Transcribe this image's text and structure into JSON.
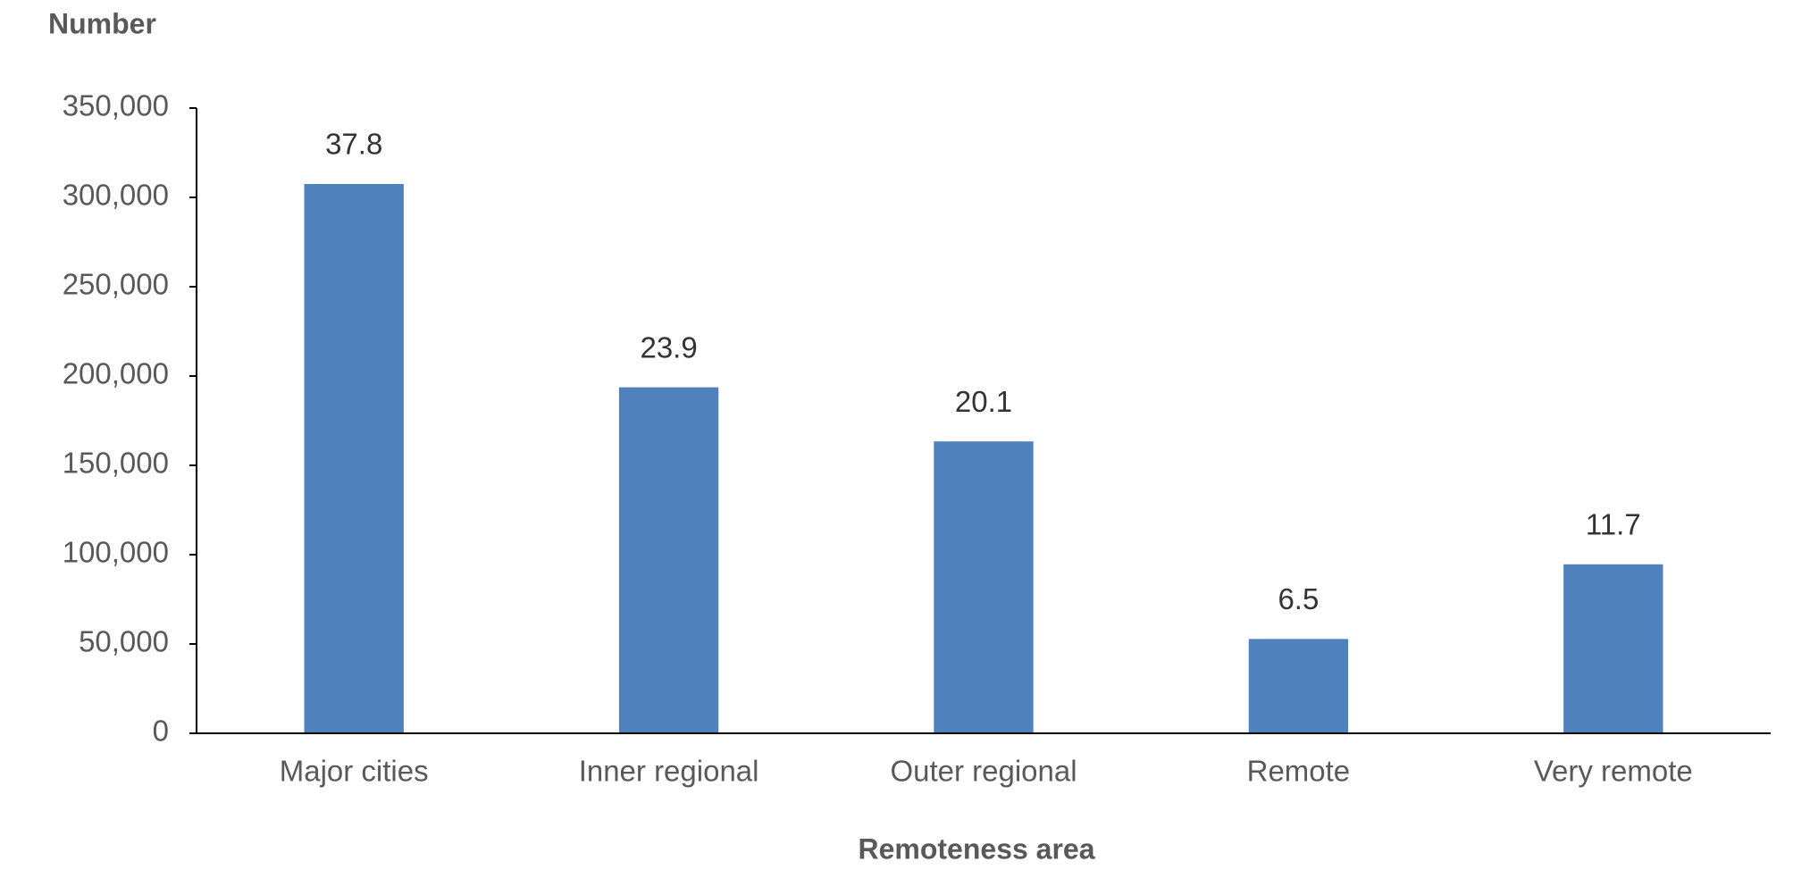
{
  "chart_data": {
    "type": "bar",
    "y_label": "Number",
    "x_label": "Remoteness area",
    "categories": [
      "Major cities",
      "Inner regional",
      "Outer regional",
      "Remote",
      "Very remote"
    ],
    "values": [
      307500,
      193700,
      163400,
      52800,
      94600
    ],
    "annotations": [
      37.8,
      23.9,
      20.1,
      6.5,
      11.7
    ],
    "color": "#4f81bd",
    "ylim": [
      0,
      350000
    ],
    "yticks": [
      0,
      {
        "value": 50000,
        "label": "50,000"
      },
      {
        "value": 100000,
        "label": "100,000"
      },
      {
        "value": 150000,
        "label": "150,000"
      },
      {
        "value": 200000,
        "label": "200,000"
      },
      {
        "value": 250000,
        "label": "250,000"
      },
      {
        "value": 300000,
        "label": "300,000"
      },
      {
        "value": 350000,
        "label": "350,000"
      }
    ],
    "grid": false
  }
}
